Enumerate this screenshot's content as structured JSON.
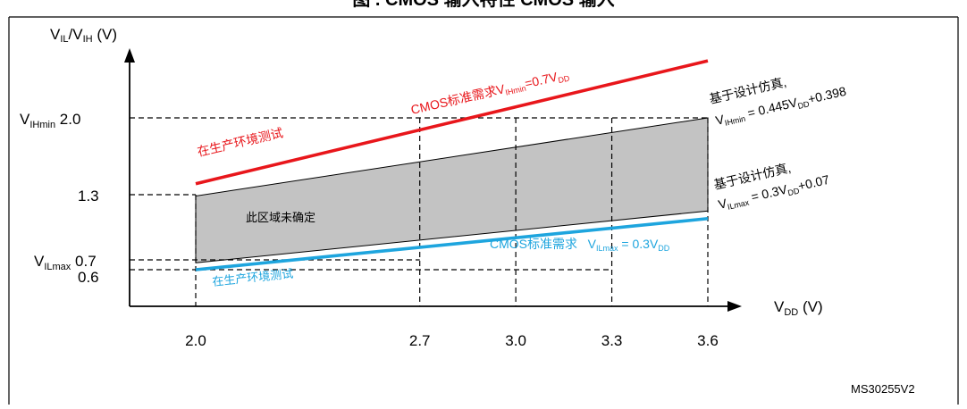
{
  "header": {
    "title_fragment": "图 . CMOS 输入特性 CMOS 输入"
  },
  "chart_data": {
    "type": "line",
    "x": [
      2.0,
      3.6
    ],
    "series": [
      {
        "values": [
          1.4,
          2.52
        ]
      },
      {
        "values": [
          1.288,
          2.0
        ]
      },
      {
        "values": [
          0.67,
          1.15
        ]
      },
      {
        "values": [
          0.6,
          1.08
        ]
      }
    ],
    "xlabel": "V",
    "xlabel_sub": "DD",
    "xlabel_unit": " (V)",
    "ylabel": {
      "p1": "V",
      "s1": "IL",
      "p2": "/V",
      "s2": "IH",
      "p3": " (V)"
    },
    "xticks": [
      "2.0",
      "2.7",
      "3.0",
      "3.3",
      "3.6"
    ],
    "yticks": {
      "vihmin": {
        "prefix": "V",
        "sub": "IHmin",
        "value": " 2.0"
      },
      "v13": "1.3",
      "vilmax": {
        "prefix": "V",
        "sub": "ILmax",
        "value": " 0.7"
      },
      "v06": "0.6"
    },
    "annotations": {
      "red_req": {
        "pre": "CMOS标准需求V",
        "sub": "IHmin",
        "mid": "=0.7V",
        "sub2": "DD"
      },
      "red_test": "在生产环境测试",
      "region": "此区域未确定",
      "upper_sim_l1": "基于设计仿真,",
      "upper_sim_l2": {
        "pre": "V",
        "sub": "IHmin",
        "mid": " = 0.445V",
        "sub2": "DD",
        "post": "+0.398"
      },
      "lower_sim_l1": "基于设计仿真,",
      "lower_sim_l2": {
        "pre": "V",
        "sub": "ILmax",
        "mid": " = 0.3V",
        "sub2": "DD",
        "post": "+0.07"
      },
      "blue_req": {
        "pre": "CMOS标准需求",
        "gap": "   V",
        "sub": "ILmax",
        "mid": " = 0.3V",
        "sub2": "DD"
      },
      "blue_test": "在生产环境测试"
    },
    "colors": {
      "red": "#e8161b",
      "blue": "#1ea5de",
      "region": "#c3c3c3",
      "axis": "#000000"
    }
  },
  "footer": {
    "code": "MS30255V2"
  }
}
